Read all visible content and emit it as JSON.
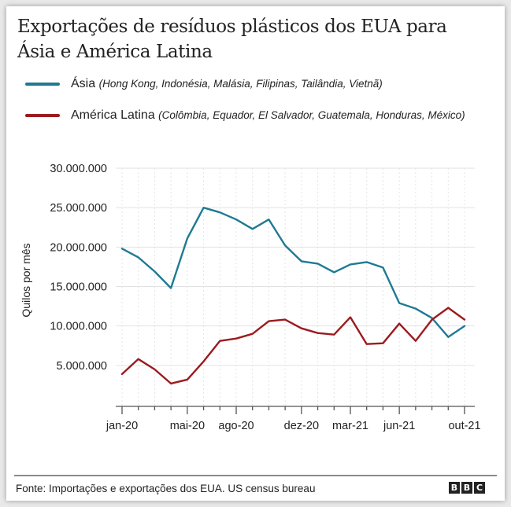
{
  "chart_data": {
    "type": "line",
    "title": "Exportações de resíduos plásticos dos EUA para Ásia e América Latina",
    "ylabel": "Quilos por mês",
    "xlabel": "",
    "ylim": [
      0,
      30000000
    ],
    "yticks": [
      5000000,
      10000000,
      15000000,
      20000000,
      25000000,
      30000000
    ],
    "ytick_labels": [
      "5.000.000",
      "10.000.000",
      "15.000.000",
      "20.000.000",
      "25.000.000",
      "30.000.000"
    ],
    "x": [
      "jan-20",
      "fev-20",
      "mar-20",
      "abr-20",
      "mai-20",
      "jun-20",
      "jul-20",
      "ago-20",
      "set-20",
      "out-20",
      "nov-20",
      "dez-20",
      "jan-21",
      "fev-21",
      "mar-21",
      "abr-21",
      "mai-21",
      "jun-21",
      "jul-21",
      "ago-21",
      "set-21",
      "out-21"
    ],
    "xtick_labels": [
      {
        "index": 0,
        "label": "jan-20"
      },
      {
        "index": 4,
        "label": "mai-20"
      },
      {
        "index": 7,
        "label": "ago-20"
      },
      {
        "index": 11,
        "label": "dez-20"
      },
      {
        "index": 14,
        "label": "mar-21"
      },
      {
        "index": 17,
        "label": "jun-21"
      },
      {
        "index": 21,
        "label": "out-21"
      }
    ],
    "grid": true,
    "legend_placement": "top",
    "series": [
      {
        "name": "Ásia",
        "detail": "(Hong Kong, Indonésia, Malásia, Filipinas, Tailândia, Vietnã)",
        "color": "#1f7a94",
        "values": [
          19800000,
          18700000,
          16900000,
          14800000,
          21100000,
          25000000,
          24400000,
          23500000,
          22300000,
          23500000,
          20200000,
          18200000,
          17900000,
          16800000,
          17800000,
          18100000,
          17400000,
          12900000,
          12200000,
          11000000,
          8600000,
          10000000
        ]
      },
      {
        "name": "América Latina",
        "detail": "(Colômbia, Equador, El Salvador, Guatemala, Honduras, México)",
        "color": "#9b1b1f",
        "values": [
          3900000,
          5800000,
          4500000,
          2700000,
          3200000,
          5500000,
          8100000,
          8400000,
          9000000,
          10600000,
          10800000,
          9700000,
          9100000,
          8900000,
          11100000,
          7700000,
          7800000,
          10300000,
          8100000,
          10800000,
          12300000,
          10800000
        ]
      }
    ]
  },
  "footer": {
    "source": "Fonte: Importações e exportações dos EUA. US census bureau",
    "logo": [
      "B",
      "B",
      "C"
    ]
  }
}
